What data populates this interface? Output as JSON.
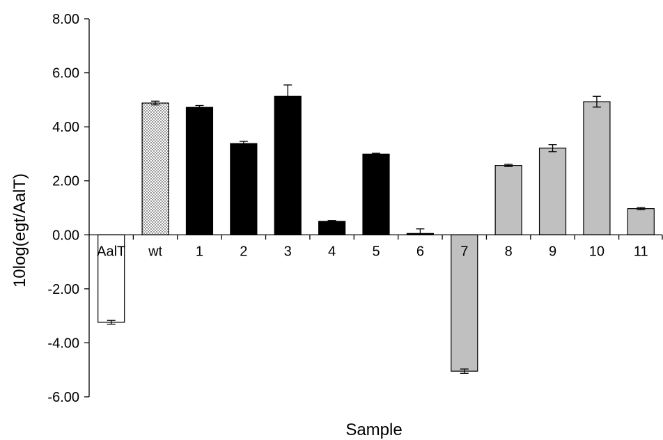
{
  "chart_data": {
    "type": "bar",
    "xlabel": "Sample",
    "ylabel": "10log(egt/AalT)",
    "ylim": [
      -6,
      8
    ],
    "ytick_step": 2,
    "ytick_decimals": 2,
    "grid": false,
    "legend": "none",
    "categories": [
      "AalT",
      "wt",
      "1",
      "2",
      "3",
      "4",
      "5",
      "6",
      "7",
      "8",
      "9",
      "10",
      "11"
    ],
    "values": [
      -3.24,
      4.88,
      4.72,
      3.38,
      5.13,
      0.5,
      2.99,
      0.05,
      -5.05,
      2.57,
      3.21,
      4.93,
      0.97
    ],
    "errors": [
      0.07,
      0.07,
      0.07,
      0.08,
      0.42,
      0.03,
      0.03,
      0.17,
      0.08,
      0.04,
      0.13,
      0.2,
      0.04
    ],
    "bar_styles": [
      "white",
      "dotted",
      "black",
      "black",
      "black",
      "black",
      "black",
      "black",
      "gray",
      "gray",
      "gray",
      "gray",
      "gray"
    ],
    "colors": {
      "white": "#ffffff",
      "black": "#000000",
      "gray": "#c0c0c0",
      "outline": "#000000"
    }
  }
}
